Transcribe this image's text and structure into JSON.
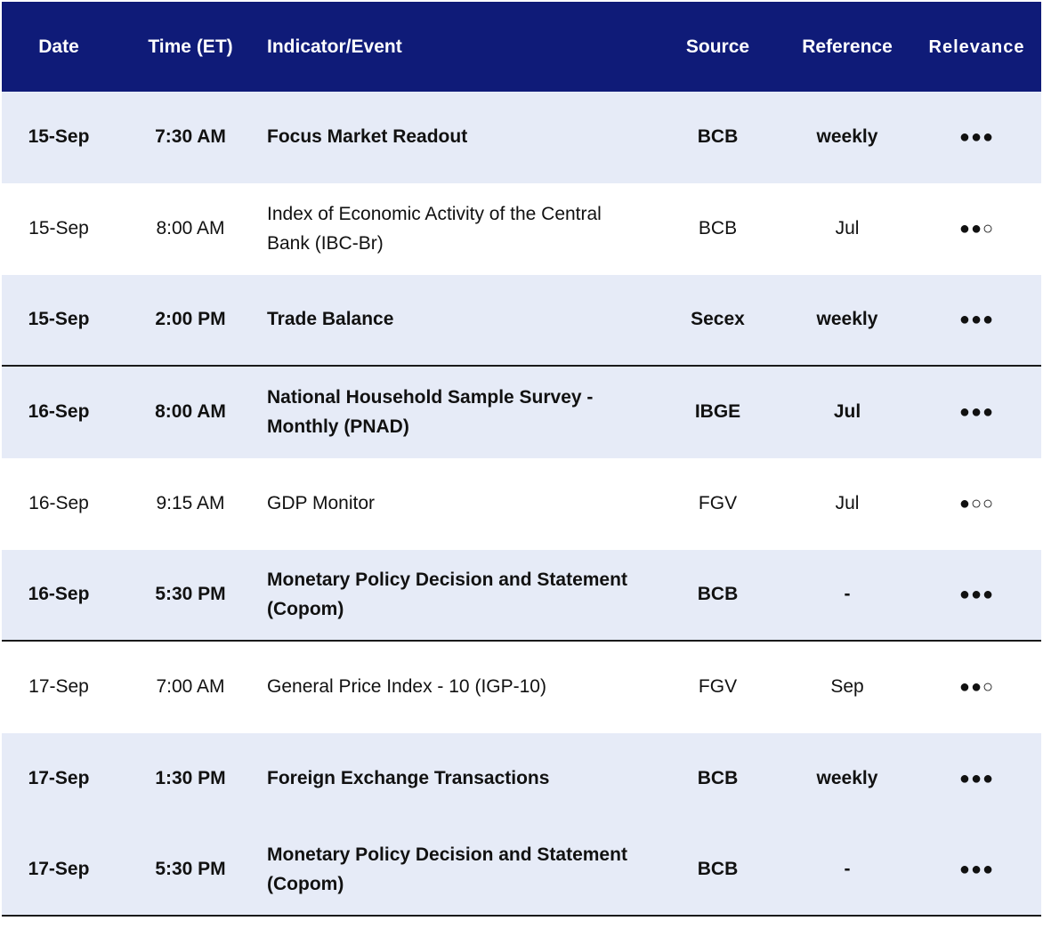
{
  "headers": {
    "date": "Date",
    "time": "Time (ET)",
    "indicator": "Indicator/Event",
    "source": "Source",
    "reference": "Reference",
    "relevance": "Relevance"
  },
  "rows": [
    {
      "date": "15-Sep",
      "time": "7:30 AM",
      "indicator": "Focus Market Readout",
      "source": "BCB",
      "reference": "weekly",
      "relevance": "●●●"
    },
    {
      "date": "15-Sep",
      "time": "8:00 AM",
      "indicator": "Index of Economic Activity of the Central Bank (IBC-Br)",
      "source": "BCB",
      "reference": "Jul",
      "relevance": "●●○"
    },
    {
      "date": "15-Sep",
      "time": "2:00 PM",
      "indicator": "Trade Balance",
      "source": "Secex",
      "reference": "weekly",
      "relevance": "●●●"
    },
    {
      "date": "16-Sep",
      "time": "8:00 AM",
      "indicator": "National Household Sample Survey - Monthly (PNAD)",
      "source": "IBGE",
      "reference": "Jul",
      "relevance": "●●●"
    },
    {
      "date": "16-Sep",
      "time": "9:15 AM",
      "indicator": "GDP Monitor",
      "source": "FGV",
      "reference": "Jul",
      "relevance": "●○○"
    },
    {
      "date": "16-Sep",
      "time": "5:30 PM",
      "indicator": "Monetary Policy Decision and Statement (Copom)",
      "source": "BCB",
      "reference": "-",
      "relevance": "●●●"
    },
    {
      "date": "17-Sep",
      "time": "7:00 AM",
      "indicator": "General Price Index - 10 (IGP-10)",
      "source": "FGV",
      "reference": "Sep",
      "relevance": "●●○"
    },
    {
      "date": "17-Sep",
      "time": "1:30 PM",
      "indicator": "Foreign Exchange Transactions",
      "source": "BCB",
      "reference": "weekly",
      "relevance": "●●●"
    },
    {
      "date": "17-Sep",
      "time": "5:30 PM",
      "indicator": "Monetary Policy Decision and Statement (Copom)",
      "source": "BCB",
      "reference": "-",
      "relevance": "●●●"
    }
  ]
}
